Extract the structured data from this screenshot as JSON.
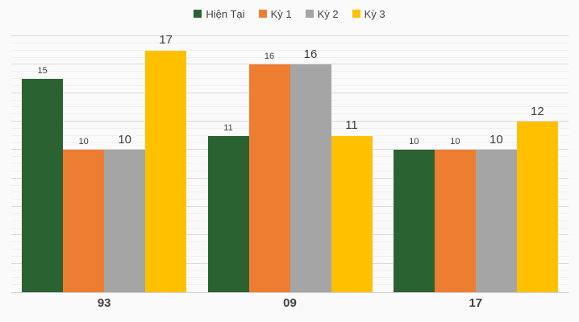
{
  "page": {
    "background": "#fafafa"
  },
  "chart_data": {
    "type": "bar",
    "title": "",
    "categories": [
      "93",
      "09",
      "17"
    ],
    "series": [
      {
        "name": "Hiện Tại",
        "color": "#2a6232",
        "values": [
          15,
          11,
          10
        ]
      },
      {
        "name": "Kỳ 1",
        "color": "#ed7d31",
        "values": [
          10,
          16,
          10
        ]
      },
      {
        "name": "Kỳ 2",
        "color": "#a5a5a5",
        "values": [
          10,
          16,
          10
        ]
      },
      {
        "name": "Kỳ 3",
        "color": "#ffc000",
        "values": [
          17,
          11,
          12
        ]
      }
    ],
    "ylim": [
      0,
      18
    ],
    "y_axis_tick_labels_visible": false,
    "gridlines": {
      "major_step": 2,
      "minor_step": 0.5
    },
    "legend_position": "top",
    "data_labels_visible": true,
    "colors": {
      "background": "#fafafa",
      "major_gridline": "#dadada",
      "minor_gridline": "#f0f0f0",
      "baseline": "#cfcfcf",
      "data_label_text": "#3d3d3d",
      "axis_text": "#424242"
    }
  }
}
